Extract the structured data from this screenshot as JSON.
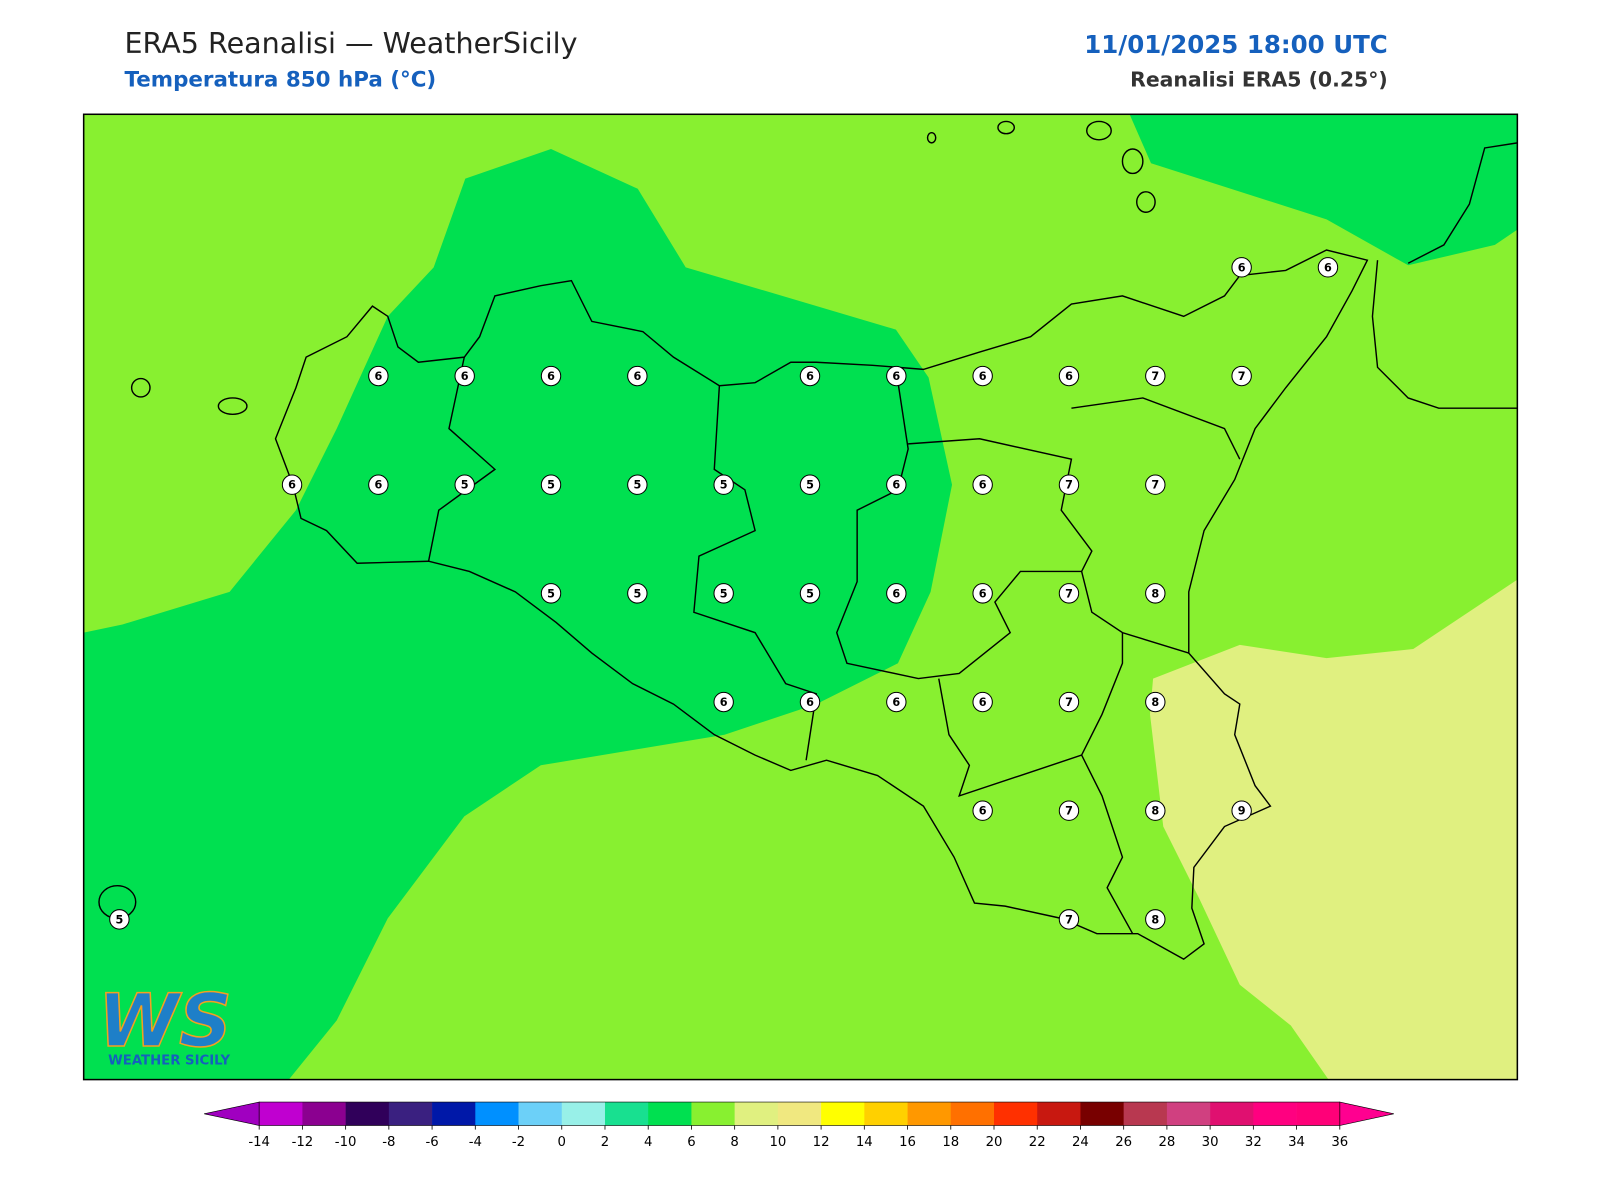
{
  "header": {
    "title": "ERA5 Reanalisi — WeatherSicily",
    "subtitle": "Temperatura 850 hPa (°C)",
    "datetime": "11/01/2025 18:00 UTC",
    "source": "Reanalisi ERA5 (0.25°)"
  },
  "logo": {
    "mark": "WS",
    "name": "WEATHER SICILY"
  },
  "stations": {
    "rows": [
      [
        null,
        null,
        null,
        null,
        null,
        null,
        null,
        null,
        null,
        null,
        null,
        null,
        null,
        6,
        6
      ],
      [
        null,
        null,
        null,
        6,
        6,
        6,
        6,
        null,
        6,
        6,
        6,
        6,
        7,
        7,
        null
      ],
      [
        null,
        null,
        6,
        6,
        5,
        5,
        5,
        5,
        5,
        6,
        6,
        7,
        7,
        null,
        null
      ],
      [
        null,
        null,
        null,
        null,
        null,
        5,
        5,
        5,
        5,
        6,
        6,
        7,
        8,
        null,
        null
      ],
      [
        null,
        null,
        null,
        null,
        null,
        null,
        null,
        6,
        6,
        6,
        6,
        7,
        8,
        null,
        null
      ],
      [
        null,
        null,
        null,
        null,
        null,
        null,
        null,
        null,
        null,
        null,
        6,
        7,
        8,
        9,
        null
      ],
      [
        5,
        null,
        null,
        null,
        null,
        null,
        null,
        null,
        null,
        null,
        null,
        7,
        8,
        null,
        null
      ]
    ]
  },
  "colorbar": {
    "ticks": [
      -14,
      -12,
      -10,
      -8,
      -6,
      -4,
      -2,
      0,
      2,
      4,
      6,
      8,
      10,
      12,
      14,
      16,
      18,
      20,
      22,
      24,
      26,
      28,
      30,
      32,
      34,
      36
    ],
    "colors": [
      "#c000d0",
      "#8b0090",
      "#30005a",
      "#3a2080",
      "#0018a8",
      "#0090ff",
      "#6cd0f8",
      "#98f0e8",
      "#18e090",
      "#00e050",
      "#88f030",
      "#e0f080",
      "#f0e880",
      "#ffff00",
      "#ffd000",
      "#ff9800",
      "#ff7000",
      "#ff3000",
      "#c81810",
      "#780000",
      "#b83850",
      "#d04080",
      "#e01070",
      "#ff0080",
      "#ff0078"
    ],
    "under_color": "#a000c0",
    "over_color": "#ff0090"
  }
}
